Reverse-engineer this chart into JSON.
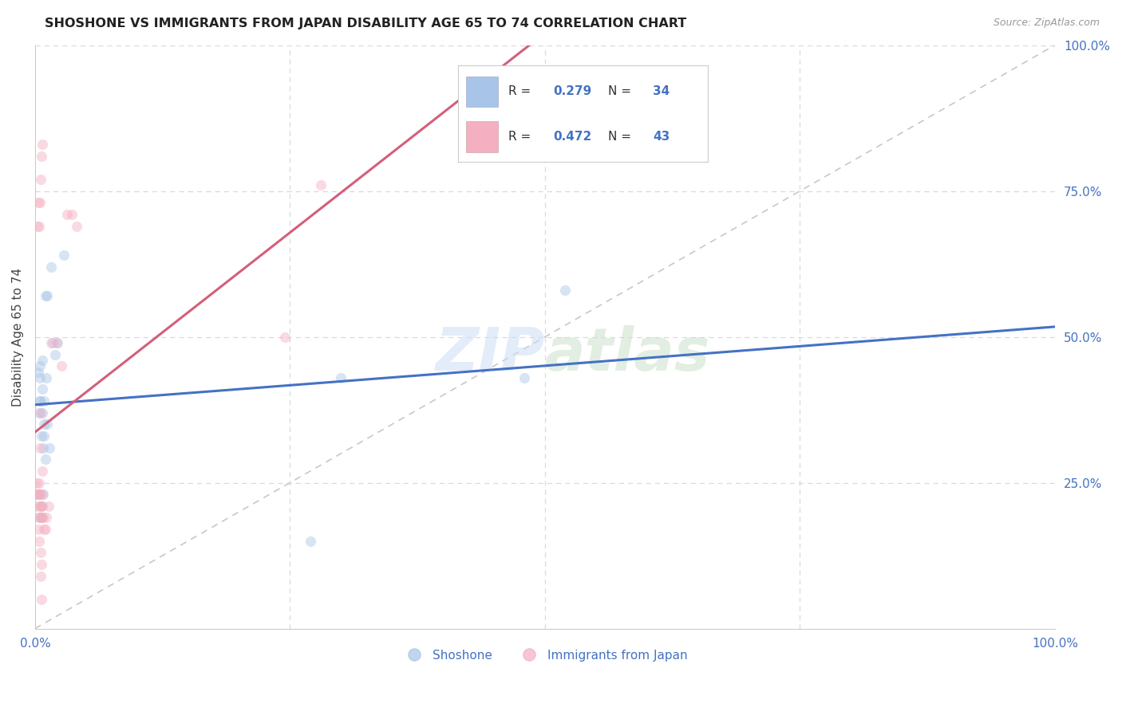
{
  "title": "SHOSHONE VS IMMIGRANTS FROM JAPAN DISABILITY AGE 65 TO 74 CORRELATION CHART",
  "source": "Source: ZipAtlas.com",
  "ylabel": "Disability Age 65 to 74",
  "legend_label_blue": "Shoshone",
  "legend_label_pink": "Immigrants from Japan",
  "blue_color": "#a8c4e8",
  "pink_color": "#f4afc0",
  "blue_line_color": "#4472c4",
  "pink_line_color": "#d45f7a",
  "diagonal_color": "#c8c8c8",
  "background_color": "#ffffff",
  "grid_color": "#d8d8e8",
  "shoshone_x": [
    0.5,
    1.2,
    1.6,
    2.8,
    0.4,
    0.5,
    0.7,
    0.9,
    1.1,
    0.6,
    0.8,
    1.0,
    1.2,
    1.4,
    0.3,
    0.5,
    0.7,
    0.4,
    0.6,
    0.8,
    0.9,
    2.0,
    2.2,
    0.5,
    0.7,
    0.4,
    0.6,
    0.9,
    27.0,
    30.0,
    48.0,
    52.0,
    1.0,
    1.7
  ],
  "shoshone_y": [
    43.0,
    57.0,
    62.0,
    64.0,
    37.0,
    39.0,
    41.0,
    39.0,
    43.0,
    33.0,
    31.0,
    29.0,
    35.0,
    31.0,
    44.0,
    45.0,
    46.0,
    23.0,
    21.0,
    23.0,
    35.0,
    47.0,
    49.0,
    39.0,
    37.0,
    19.0,
    19.0,
    33.0,
    15.0,
    43.0,
    43.0,
    58.0,
    57.0,
    49.0
  ],
  "japan_x": [
    0.15,
    0.2,
    0.3,
    0.4,
    0.5,
    0.55,
    0.6,
    0.7,
    0.75,
    0.8,
    0.9,
    1.0,
    1.1,
    1.3,
    1.6,
    2.1,
    2.6,
    3.1,
    3.6,
    4.1,
    0.18,
    0.28,
    0.38,
    0.48,
    0.58,
    0.32,
    0.42,
    0.52,
    0.62,
    0.22,
    0.33,
    0.44,
    0.54,
    0.64,
    0.74,
    0.45,
    0.55,
    0.65,
    0.75,
    24.5,
    28.0,
    0.38,
    0.52
  ],
  "japan_y": [
    21.0,
    23.0,
    23.0,
    25.0,
    23.0,
    21.0,
    19.0,
    21.0,
    23.0,
    19.0,
    17.0,
    17.0,
    19.0,
    21.0,
    49.0,
    49.0,
    45.0,
    71.0,
    71.0,
    69.0,
    25.0,
    23.0,
    19.0,
    21.0,
    19.0,
    17.0,
    15.0,
    13.0,
    11.0,
    69.0,
    73.0,
    73.0,
    77.0,
    81.0,
    83.0,
    31.0,
    9.0,
    5.0,
    27.0,
    50.0,
    76.0,
    69.0,
    37.0
  ],
  "xlim": [
    0,
    100
  ],
  "ylim": [
    0,
    100
  ],
  "marker_size": 90,
  "marker_alpha": 0.45,
  "line_width": 2.2,
  "blue_r": 0.279,
  "blue_n": 34,
  "pink_r": 0.472,
  "pink_n": 43
}
